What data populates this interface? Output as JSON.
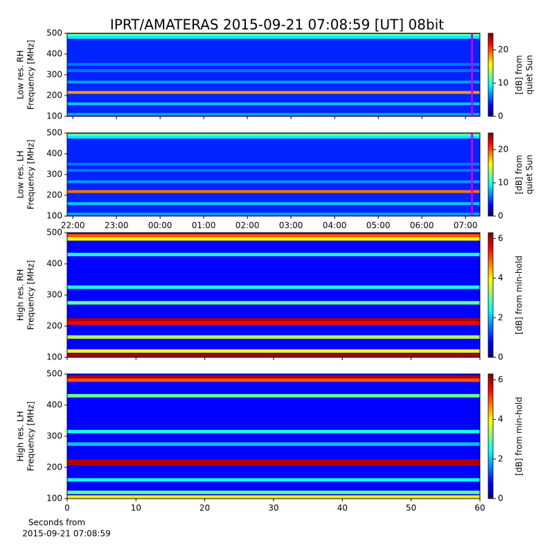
{
  "title": "IPRT/AMATERAS 2015-09-21 07:08:59 [UT]   08bit",
  "chart_data": [
    {
      "type": "heatmap",
      "ylabel": [
        "Low res. RH",
        "Frequency [MHz]"
      ],
      "ylim": [
        100,
        500
      ],
      "yticks": [
        100,
        200,
        300,
        400,
        500
      ],
      "xlim": [
        21.87,
        31.33
      ],
      "xticks": [
        22,
        23,
        24,
        25,
        26,
        27,
        28,
        29,
        30,
        31
      ],
      "show_xtick_labels": false,
      "marker_time": 31.15,
      "marker_color": "#cc00ff",
      "clim": [
        0,
        25
      ],
      "cticks": [
        0,
        10,
        20
      ],
      "colorbar_label": [
        "[dB] from",
        "quiet Sun"
      ],
      "background_level": 4,
      "bands": [
        {
          "freq": 490,
          "level": 12
        },
        {
          "freq": 480,
          "level": 9
        },
        {
          "freq": 350,
          "level": 6
        },
        {
          "freq": 320,
          "level": 6
        },
        {
          "freq": 265,
          "level": 7
        },
        {
          "freq": 215,
          "level": 18
        },
        {
          "freq": 160,
          "level": 8
        },
        {
          "freq": 110,
          "level": 7
        }
      ]
    },
    {
      "type": "heatmap",
      "ylabel": [
        "Low res. LH",
        "Frequency [MHz]"
      ],
      "ylim": [
        100,
        500
      ],
      "yticks": [
        100,
        200,
        300,
        400,
        500
      ],
      "xlim": [
        21.87,
        31.33
      ],
      "xticks": [
        {
          "value": 22,
          "label": "22:00"
        },
        {
          "value": 23,
          "label": "23:00"
        },
        {
          "value": 24,
          "label": "00:00"
        },
        {
          "value": 25,
          "label": "01:00"
        },
        {
          "value": 26,
          "label": "02:00"
        },
        {
          "value": 27,
          "label": "03:00"
        },
        {
          "value": 28,
          "label": "04:00"
        },
        {
          "value": 29,
          "label": "05:00"
        },
        {
          "value": 30,
          "label": "06:00"
        },
        {
          "value": 31,
          "label": "07:00"
        }
      ],
      "show_xtick_labels": true,
      "marker_time": 31.15,
      "marker_color": "#cc00ff",
      "clim": [
        0,
        25
      ],
      "cticks": [
        0,
        10,
        20
      ],
      "colorbar_label": [
        "[dB] from",
        "quiet Sun"
      ],
      "background_level": 4,
      "bands": [
        {
          "freq": 490,
          "level": 12
        },
        {
          "freq": 480,
          "level": 9
        },
        {
          "freq": 350,
          "level": 6
        },
        {
          "freq": 320,
          "level": 6
        },
        {
          "freq": 265,
          "level": 7
        },
        {
          "freq": 218,
          "level": 19
        },
        {
          "freq": 160,
          "level": 8
        },
        {
          "freq": 110,
          "level": 7
        }
      ]
    },
    {
      "type": "heatmap",
      "ylabel": [
        "High res. RH",
        "Frequency [MHz]"
      ],
      "ylim": [
        100,
        500
      ],
      "yticks": [
        100,
        200,
        300,
        400,
        500
      ],
      "xlim": [
        0,
        60
      ],
      "xticks": [
        0,
        10,
        20,
        30,
        40,
        50,
        60
      ],
      "show_xtick_labels": false,
      "clim": [
        0,
        6.3
      ],
      "cticks": [
        0,
        2,
        4,
        6
      ],
      "colorbar_label": [
        "[dB] from min-hold"
      ],
      "background_level": 0.8,
      "bands": [
        {
          "freq": 490,
          "level": 5
        },
        {
          "freq": 480,
          "level": 4
        },
        {
          "freq": 430,
          "level": 2.5
        },
        {
          "freq": 325,
          "level": 2.5
        },
        {
          "freq": 275,
          "level": 3
        },
        {
          "freq": 220,
          "level": 6
        },
        {
          "freq": 210,
          "level": 5.5
        },
        {
          "freq": 165,
          "level": 3.5
        },
        {
          "freq": 120,
          "level": 4
        },
        {
          "freq": 105,
          "level": 6
        }
      ]
    },
    {
      "type": "heatmap",
      "ylabel": [
        "High res. LH",
        "Frequency [MHz]"
      ],
      "ylim": [
        100,
        500
      ],
      "yticks": [
        100,
        200,
        300,
        400,
        500
      ],
      "xlim": [
        0,
        60
      ],
      "xticks": [
        0,
        10,
        20,
        30,
        40,
        50,
        60
      ],
      "show_xtick_labels": true,
      "xlabel": [
        "Seconds from",
        "2015-09-21 07:08:59"
      ],
      "clim": [
        0,
        6.3
      ],
      "cticks": [
        0,
        2,
        4,
        6
      ],
      "colorbar_label": [
        "[dB] from min-hold"
      ],
      "background_level": 0.8,
      "bands": [
        {
          "freq": 490,
          "level": 6
        },
        {
          "freq": 480,
          "level": 5
        },
        {
          "freq": 430,
          "level": 3
        },
        {
          "freq": 315,
          "level": 2.5
        },
        {
          "freq": 275,
          "level": 2
        },
        {
          "freq": 220,
          "level": 6
        },
        {
          "freq": 212,
          "level": 6
        },
        {
          "freq": 160,
          "level": 2.5
        },
        {
          "freq": 120,
          "level": 3
        },
        {
          "freq": 105,
          "level": 4
        }
      ]
    }
  ]
}
